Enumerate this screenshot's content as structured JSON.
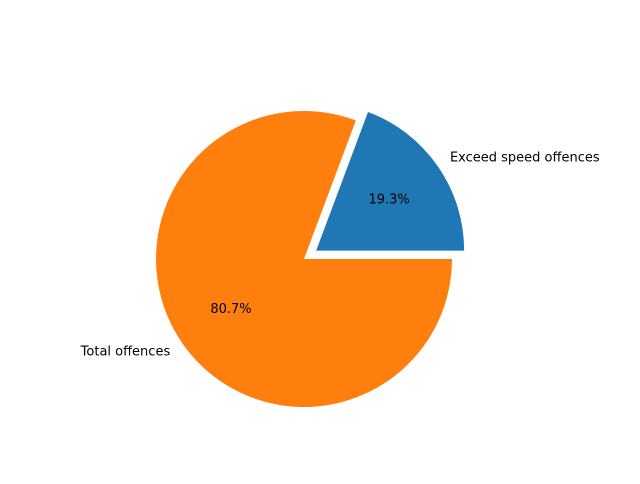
{
  "chart_data": {
    "type": "pie",
    "slices": [
      {
        "label": "Exceed speed offences",
        "value": 19.3,
        "pct_label": "19.3%",
        "color": "#1f77b4",
        "exploded": true
      },
      {
        "label": "Total offences",
        "value": 80.7,
        "pct_label": "80.7%",
        "color": "#ff7f0e",
        "exploded": false
      }
    ],
    "start_angle_deg": 0,
    "direction": "counterclockwise",
    "legend": "none",
    "title": ""
  }
}
